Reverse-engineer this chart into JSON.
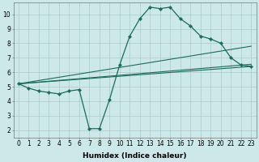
{
  "title": "",
  "xlabel": "Humidex (Indice chaleur)",
  "ylabel": "",
  "background_color": "#cce8e8",
  "grid_color": "#aacccc",
  "line_color": "#1a6b5e",
  "xlim": [
    -0.5,
    23.5
  ],
  "ylim": [
    1.5,
    10.8
  ],
  "yticks": [
    2,
    3,
    4,
    5,
    6,
    7,
    8,
    9,
    10
  ],
  "xticks": [
    0,
    1,
    2,
    3,
    4,
    5,
    6,
    7,
    8,
    9,
    10,
    11,
    12,
    13,
    14,
    15,
    16,
    17,
    18,
    19,
    20,
    21,
    22,
    23
  ],
  "series_main": {
    "x": [
      0,
      1,
      2,
      3,
      4,
      5,
      6,
      7,
      8,
      9,
      10,
      11,
      12,
      13,
      14,
      15,
      16,
      17,
      18,
      19,
      20,
      21,
      22,
      23
    ],
    "y": [
      5.2,
      4.9,
      4.7,
      4.6,
      4.5,
      4.7,
      4.8,
      2.1,
      2.1,
      4.1,
      6.5,
      8.5,
      9.7,
      10.5,
      10.4,
      10.5,
      9.7,
      9.2,
      8.5,
      8.3,
      8.0,
      7.0,
      6.5,
      6.4
    ]
  },
  "series_lines": [
    {
      "x": [
        0,
        23
      ],
      "y": [
        5.2,
        6.4
      ]
    },
    {
      "x": [
        0,
        23
      ],
      "y": [
        5.2,
        6.55
      ]
    },
    {
      "x": [
        0,
        23
      ],
      "y": [
        5.2,
        7.8
      ]
    }
  ],
  "tick_fontsize": 5.5,
  "xlabel_fontsize": 6.5
}
